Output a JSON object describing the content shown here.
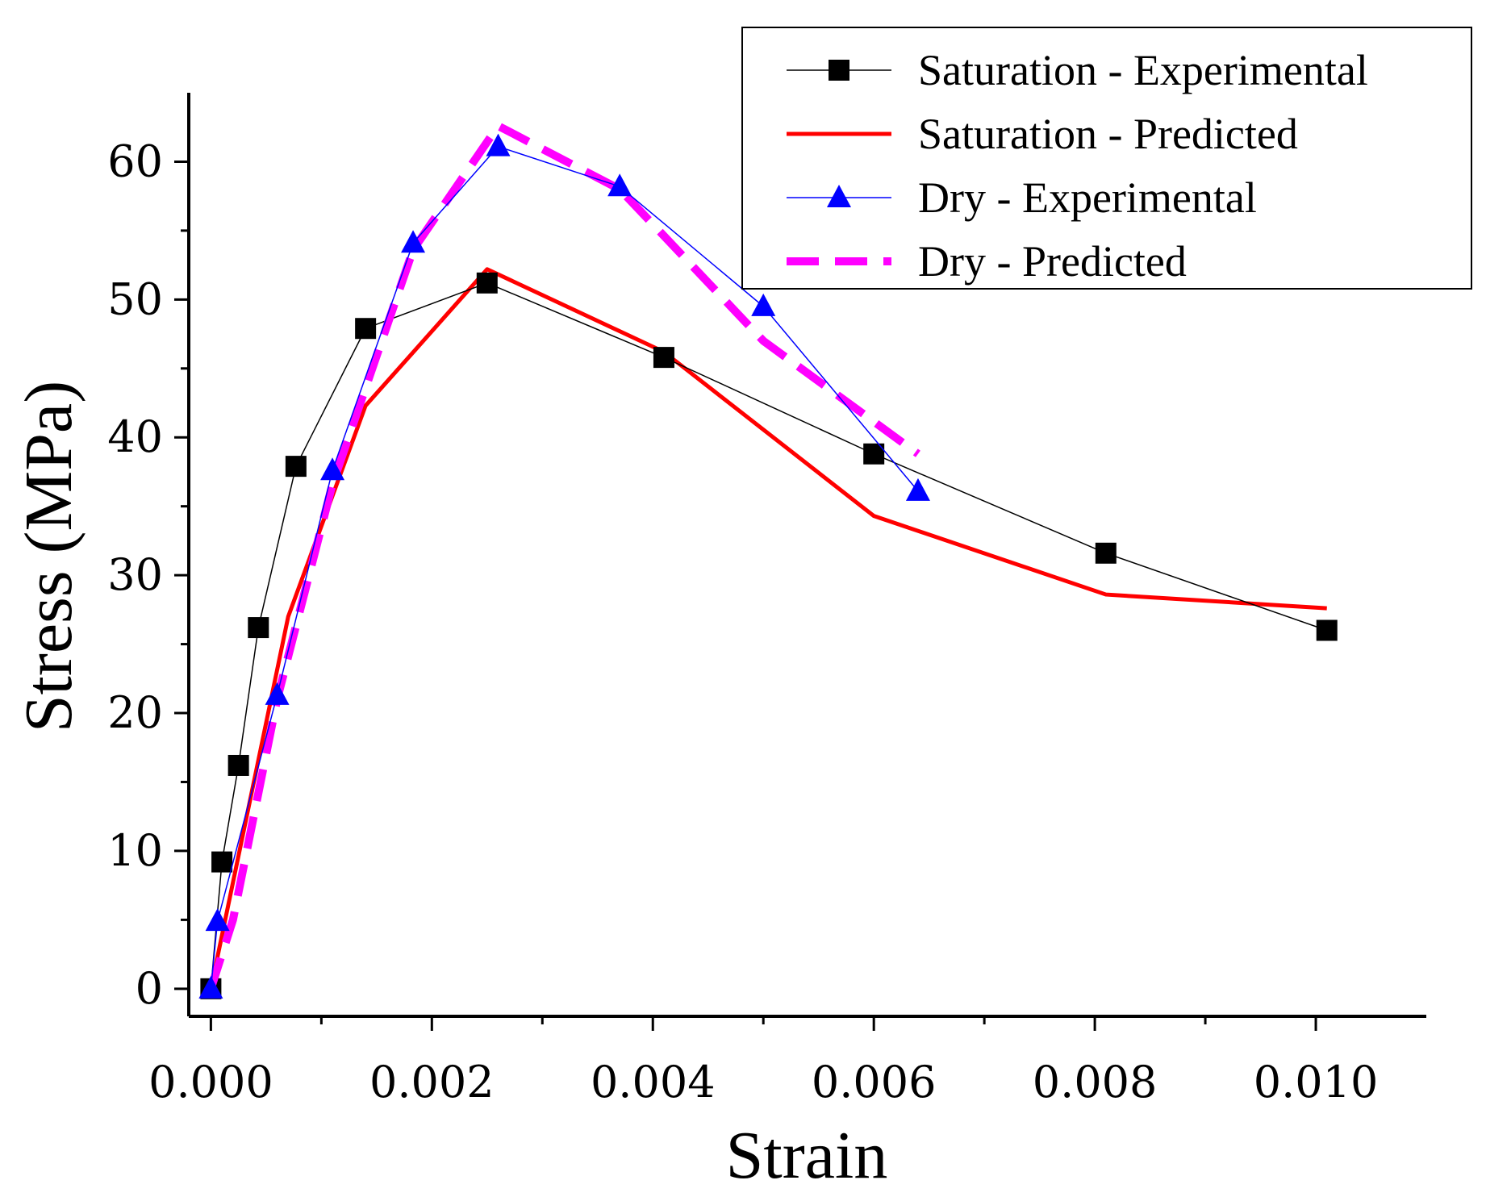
{
  "chart_data": {
    "type": "line",
    "title": "",
    "xlabel": "Strain",
    "ylabel": "Stress (MPa)",
    "xlim": [
      -0.0002,
      0.011
    ],
    "ylim": [
      -2,
      65
    ],
    "xticks": [
      0.0,
      0.002,
      0.004,
      0.006,
      0.008,
      0.01
    ],
    "xtick_labels": [
      "0.000",
      "0.002",
      "0.004",
      "0.006",
      "0.008",
      "0.010"
    ],
    "yticks": [
      0,
      10,
      20,
      30,
      40,
      50,
      60
    ],
    "ytick_labels": [
      "0",
      "10",
      "20",
      "30",
      "40",
      "50",
      "60"
    ],
    "grid": false,
    "legend_position": "top-right",
    "series": [
      {
        "name": "Saturation - Experimental",
        "color": "#000000",
        "line": "solid-thin",
        "marker": "square",
        "x": [
          0.0,
          0.0001,
          0.00025,
          0.00043,
          0.00077,
          0.0014,
          0.0025,
          0.0041,
          0.006,
          0.0081,
          0.0101
        ],
        "y": [
          0,
          9.2,
          16.2,
          26.2,
          37.9,
          47.9,
          51.2,
          45.8,
          38.8,
          31.6,
          26.0
        ]
      },
      {
        "name": "Saturation - Predicted",
        "color": "#ff0000",
        "line": "solid",
        "marker": "none",
        "x": [
          0.0,
          0.0007,
          0.0014,
          0.0025,
          0.0041,
          0.006,
          0.0081,
          0.0101
        ],
        "y": [
          0,
          27.0,
          42.3,
          52.2,
          46.2,
          34.3,
          28.6,
          27.6
        ]
      },
      {
        "name": "Dry - Experimental",
        "color": "#0000ff",
        "line": "solid-thin",
        "marker": "triangle",
        "x": [
          0.0,
          6e-05,
          0.0006,
          0.0011,
          0.00183,
          0.0026,
          0.0037,
          0.005,
          0.0064
        ],
        "y": [
          0,
          4.9,
          21.3,
          37.6,
          54.1,
          61.1,
          58.2,
          49.5,
          36.1
        ]
      },
      {
        "name": "Dry - Predicted",
        "color": "#ff00ff",
        "line": "dashed",
        "marker": "none",
        "x": [
          0.0,
          0.0002,
          0.0006,
          0.0011,
          0.00183,
          0.0026,
          0.0037,
          0.005,
          0.0064
        ],
        "y": [
          0,
          5.0,
          21.0,
          36.6,
          53.6,
          62.6,
          58.0,
          47.0,
          38.8
        ]
      }
    ]
  }
}
